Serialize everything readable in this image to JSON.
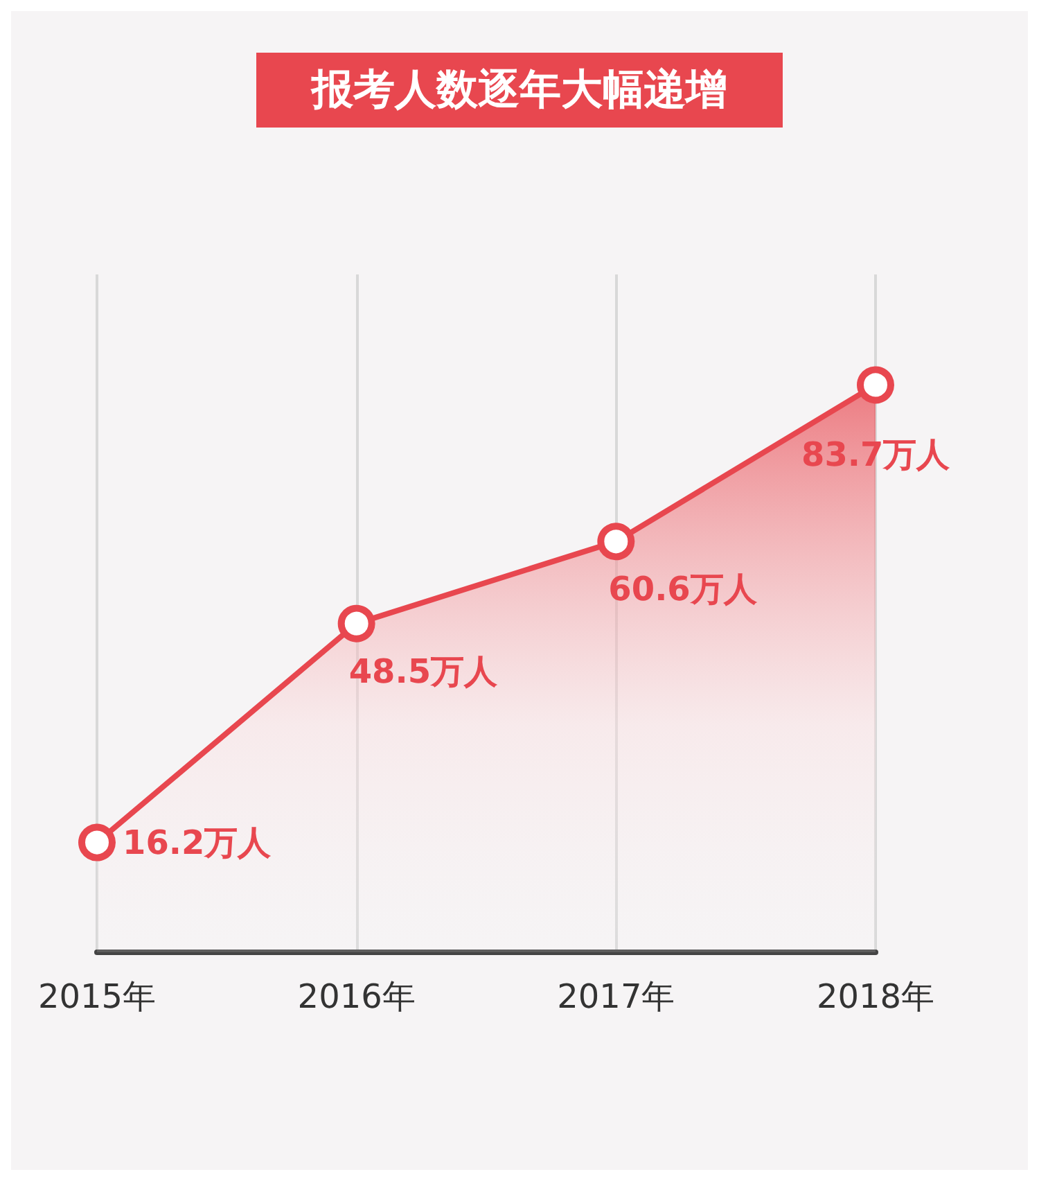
{
  "chart_data": {
    "type": "area",
    "title": "报考人数逐年大幅递增",
    "categories": [
      "2015年",
      "2016年",
      "2017年",
      "2018年"
    ],
    "values": [
      16.2,
      48.5,
      60.6,
      83.7
    ],
    "value_labels": [
      "16.2万人",
      "48.5万人",
      "60.6万人",
      "83.7万人"
    ],
    "color": "#e8474f",
    "marker": "circle",
    "grid": "x",
    "tick_labels": "x"
  }
}
